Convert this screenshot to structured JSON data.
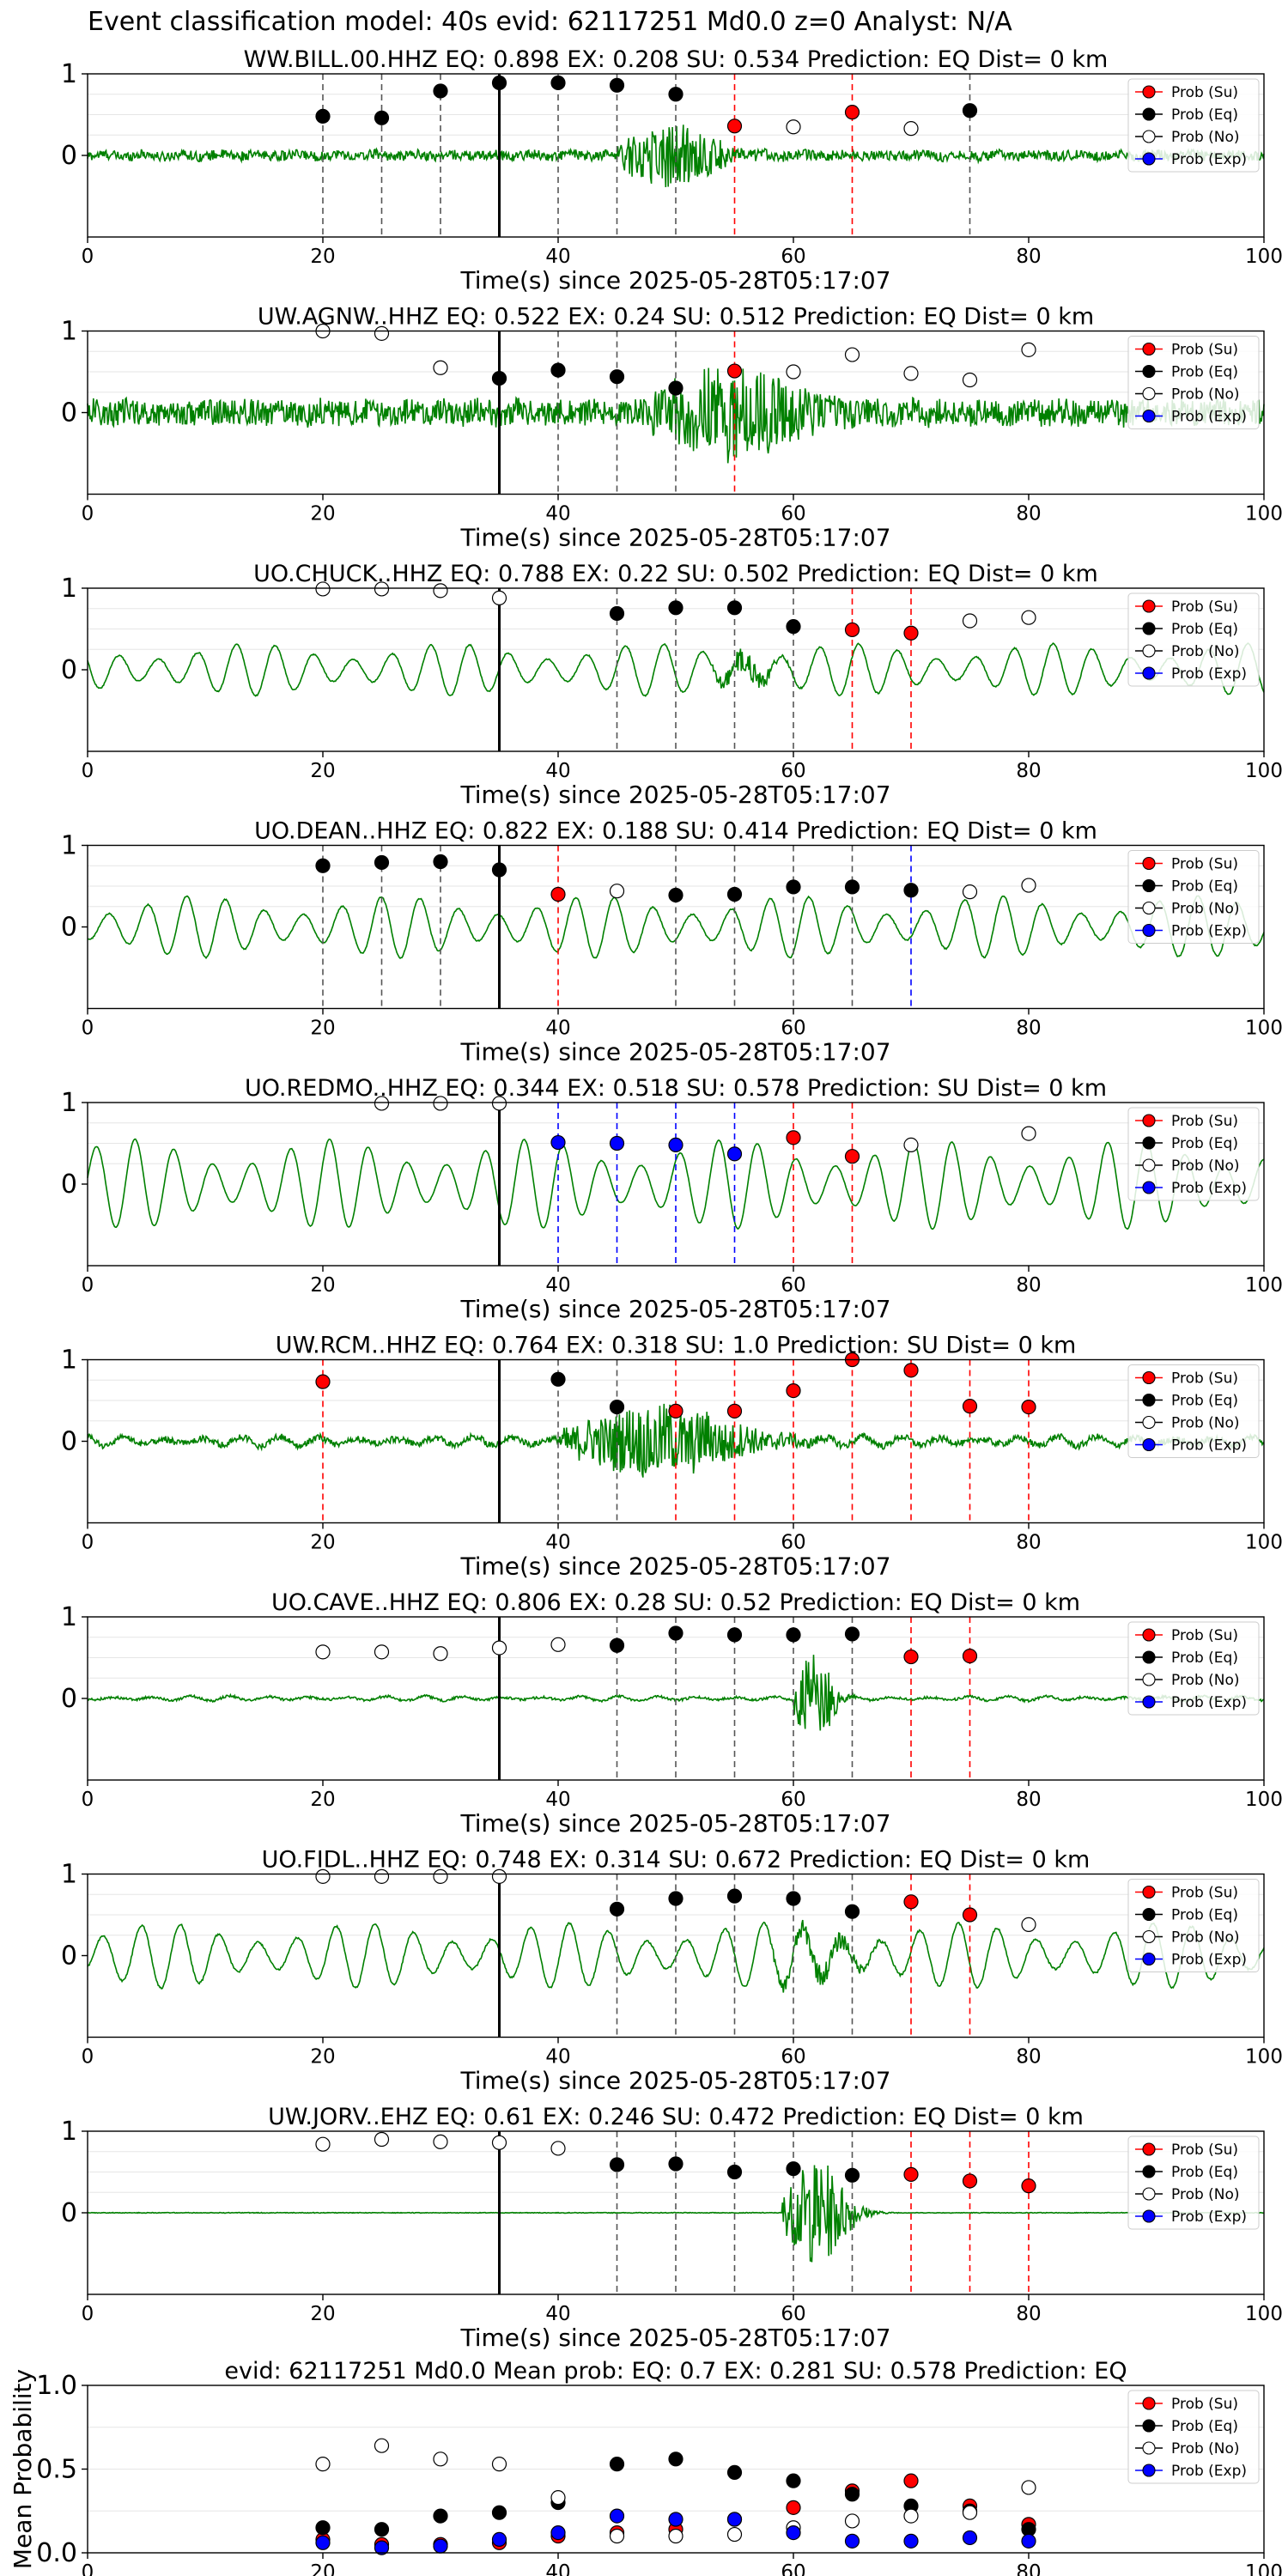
{
  "page_title": "Event classification model: 40s evid: 62117251 Md0.0 z=0 Analyst: N/A",
  "x_axis": {
    "label": "Time(s) since 2025-05-28T05:17:07",
    "range": [
      0,
      100
    ],
    "ticks": [
      "0",
      "20",
      "40",
      "60",
      "80",
      "100"
    ]
  },
  "legend_labels": [
    "Prob (Su)",
    "Prob (Eq)",
    "Prob (No)",
    "Prob (Exp)"
  ],
  "colors": {
    "su": "#ff0000",
    "eq": "#000000",
    "no": "#ffffff",
    "exp": "#0000ff",
    "trace": "#008000"
  },
  "chart_data": [
    {
      "type": "line",
      "title": "WW.BILL.00.HHZ   EQ: 0.898  EX: 0.208  SU: 0.534   Prediction: EQ    Dist= 0 km",
      "y_ticks": [
        "1",
        "0"
      ],
      "ylim": [
        -1,
        1
      ],
      "xlim": [
        0,
        100
      ],
      "pick_time": 35,
      "vlines": [
        {
          "x": 20,
          "c": "eq"
        },
        {
          "x": 25,
          "c": "eq"
        },
        {
          "x": 30,
          "c": "eq"
        },
        {
          "x": 40,
          "c": "eq"
        },
        {
          "x": 45,
          "c": "eq"
        },
        {
          "x": 50,
          "c": "eq"
        },
        {
          "x": 55,
          "c": "su"
        },
        {
          "x": 65,
          "c": "su"
        },
        {
          "x": 75,
          "c": "eq"
        }
      ],
      "points": [
        {
          "x": 20,
          "y": 0.48,
          "c": "eq"
        },
        {
          "x": 25,
          "y": 0.46,
          "c": "eq"
        },
        {
          "x": 30,
          "y": 0.79,
          "c": "eq"
        },
        {
          "x": 35,
          "y": 0.89,
          "c": "eq"
        },
        {
          "x": 40,
          "y": 0.89,
          "c": "eq"
        },
        {
          "x": 45,
          "y": 0.86,
          "c": "eq"
        },
        {
          "x": 50,
          "y": 0.75,
          "c": "eq"
        },
        {
          "x": 55,
          "y": 0.36,
          "c": "su"
        },
        {
          "x": 60,
          "y": 0.35,
          "c": "no"
        },
        {
          "x": 65,
          "y": 0.53,
          "c": "su"
        },
        {
          "x": 70,
          "y": 0.33,
          "c": "no"
        },
        {
          "x": 75,
          "y": 0.55,
          "c": "eq"
        }
      ]
    },
    {
      "type": "line",
      "title": "UW.AGNW..HHZ   EQ: 0.522  EX: 0.24  SU: 0.512   Prediction: EQ    Dist= 0 km",
      "y_ticks": [
        "1",
        "0"
      ],
      "ylim": [
        -1,
        1
      ],
      "xlim": [
        0,
        100
      ],
      "pick_time": 35,
      "vlines": [
        {
          "x": 40,
          "c": "eq"
        },
        {
          "x": 45,
          "c": "eq"
        },
        {
          "x": 50,
          "c": "eq"
        },
        {
          "x": 55,
          "c": "su"
        }
      ],
      "points": [
        {
          "x": 20,
          "y": 1.0,
          "c": "no"
        },
        {
          "x": 25,
          "y": 0.97,
          "c": "no"
        },
        {
          "x": 30,
          "y": 0.55,
          "c": "no"
        },
        {
          "x": 35,
          "y": 0.42,
          "c": "eq"
        },
        {
          "x": 40,
          "y": 0.52,
          "c": "eq"
        },
        {
          "x": 45,
          "y": 0.44,
          "c": "eq"
        },
        {
          "x": 50,
          "y": 0.3,
          "c": "eq"
        },
        {
          "x": 55,
          "y": 0.51,
          "c": "su"
        },
        {
          "x": 60,
          "y": 0.5,
          "c": "no"
        },
        {
          "x": 65,
          "y": 0.71,
          "c": "no"
        },
        {
          "x": 70,
          "y": 0.48,
          "c": "no"
        },
        {
          "x": 75,
          "y": 0.4,
          "c": "no"
        },
        {
          "x": 80,
          "y": 0.77,
          "c": "no"
        }
      ]
    },
    {
      "type": "line",
      "title": "UO.CHUCK..HHZ   EQ: 0.788  EX: 0.22  SU: 0.502   Prediction: EQ    Dist= 0 km",
      "y_ticks": [
        "1",
        "0"
      ],
      "ylim": [
        -1,
        1
      ],
      "xlim": [
        0,
        100
      ],
      "pick_time": 35,
      "vlines": [
        {
          "x": 45,
          "c": "eq"
        },
        {
          "x": 50,
          "c": "eq"
        },
        {
          "x": 55,
          "c": "eq"
        },
        {
          "x": 60,
          "c": "eq"
        },
        {
          "x": 65,
          "c": "su"
        },
        {
          "x": 70,
          "c": "su"
        }
      ],
      "points": [
        {
          "x": 20,
          "y": 0.99,
          "c": "no"
        },
        {
          "x": 25,
          "y": 0.99,
          "c": "no"
        },
        {
          "x": 30,
          "y": 0.97,
          "c": "no"
        },
        {
          "x": 35,
          "y": 0.88,
          "c": "no"
        },
        {
          "x": 45,
          "y": 0.69,
          "c": "eq"
        },
        {
          "x": 50,
          "y": 0.76,
          "c": "eq"
        },
        {
          "x": 55,
          "y": 0.76,
          "c": "eq"
        },
        {
          "x": 60,
          "y": 0.53,
          "c": "eq"
        },
        {
          "x": 65,
          "y": 0.49,
          "c": "su"
        },
        {
          "x": 70,
          "y": 0.45,
          "c": "su"
        },
        {
          "x": 75,
          "y": 0.6,
          "c": "no"
        },
        {
          "x": 80,
          "y": 0.64,
          "c": "no"
        }
      ]
    },
    {
      "type": "line",
      "title": "UO.DEAN..HHZ   EQ: 0.822  EX: 0.188  SU: 0.414   Prediction: EQ    Dist= 0 km",
      "y_ticks": [
        "1",
        "0"
      ],
      "ylim": [
        -1,
        1
      ],
      "xlim": [
        0,
        100
      ],
      "pick_time": 35,
      "vlines": [
        {
          "x": 20,
          "c": "eq"
        },
        {
          "x": 25,
          "c": "eq"
        },
        {
          "x": 30,
          "c": "eq"
        },
        {
          "x": 40,
          "c": "su"
        },
        {
          "x": 50,
          "c": "eq"
        },
        {
          "x": 55,
          "c": "eq"
        },
        {
          "x": 60,
          "c": "eq"
        },
        {
          "x": 65,
          "c": "eq"
        },
        {
          "x": 70,
          "c": "exp"
        }
      ],
      "points": [
        {
          "x": 20,
          "y": 0.75,
          "c": "eq"
        },
        {
          "x": 25,
          "y": 0.79,
          "c": "eq"
        },
        {
          "x": 30,
          "y": 0.8,
          "c": "eq"
        },
        {
          "x": 35,
          "y": 0.7,
          "c": "eq"
        },
        {
          "x": 40,
          "y": 0.4,
          "c": "su"
        },
        {
          "x": 45,
          "y": 0.44,
          "c": "no"
        },
        {
          "x": 50,
          "y": 0.39,
          "c": "eq"
        },
        {
          "x": 55,
          "y": 0.4,
          "c": "eq"
        },
        {
          "x": 60,
          "y": 0.49,
          "c": "eq"
        },
        {
          "x": 65,
          "y": 0.49,
          "c": "eq"
        },
        {
          "x": 70,
          "y": 0.45,
          "c": "eq"
        },
        {
          "x": 75,
          "y": 0.43,
          "c": "no"
        },
        {
          "x": 80,
          "y": 0.51,
          "c": "no"
        }
      ]
    },
    {
      "type": "line",
      "title": "UO.REDMO..HHZ   EQ: 0.344  EX: 0.518  SU: 0.578   Prediction: SU    Dist= 0 km",
      "y_ticks": [
        "1",
        "0"
      ],
      "ylim": [
        -1,
        1
      ],
      "xlim": [
        0,
        100
      ],
      "pick_time": 35,
      "vlines": [
        {
          "x": 40,
          "c": "exp"
        },
        {
          "x": 45,
          "c": "exp"
        },
        {
          "x": 50,
          "c": "exp"
        },
        {
          "x": 55,
          "c": "exp"
        },
        {
          "x": 60,
          "c": "su"
        },
        {
          "x": 65,
          "c": "su"
        }
      ],
      "points": [
        {
          "x": 25,
          "y": 0.99,
          "c": "no"
        },
        {
          "x": 30,
          "y": 0.99,
          "c": "no"
        },
        {
          "x": 35,
          "y": 0.99,
          "c": "no"
        },
        {
          "x": 40,
          "y": 0.51,
          "c": "exp"
        },
        {
          "x": 45,
          "y": 0.5,
          "c": "exp"
        },
        {
          "x": 50,
          "y": 0.48,
          "c": "exp"
        },
        {
          "x": 55,
          "y": 0.37,
          "c": "exp"
        },
        {
          "x": 60,
          "y": 0.57,
          "c": "su"
        },
        {
          "x": 65,
          "y": 0.34,
          "c": "su"
        },
        {
          "x": 70,
          "y": 0.48,
          "c": "no"
        },
        {
          "x": 80,
          "y": 0.62,
          "c": "no"
        }
      ]
    },
    {
      "type": "line",
      "title": "UW.RCM..HHZ   EQ: 0.764  EX: 0.318  SU: 1.0   Prediction: SU    Dist= 0 km",
      "y_ticks": [
        "1",
        "0"
      ],
      "ylim": [
        -1,
        1
      ],
      "xlim": [
        0,
        100
      ],
      "pick_time": 35,
      "vlines": [
        {
          "x": 20,
          "c": "su"
        },
        {
          "x": 40,
          "c": "eq"
        },
        {
          "x": 45,
          "c": "eq"
        },
        {
          "x": 50,
          "c": "su"
        },
        {
          "x": 55,
          "c": "su"
        },
        {
          "x": 60,
          "c": "su"
        },
        {
          "x": 65,
          "c": "su"
        },
        {
          "x": 70,
          "c": "su"
        },
        {
          "x": 75,
          "c": "su"
        },
        {
          "x": 80,
          "c": "su"
        }
      ],
      "points": [
        {
          "x": 20,
          "y": 0.73,
          "c": "su"
        },
        {
          "x": 40,
          "y": 0.76,
          "c": "eq"
        },
        {
          "x": 45,
          "y": 0.42,
          "c": "eq"
        },
        {
          "x": 50,
          "y": 0.37,
          "c": "su"
        },
        {
          "x": 55,
          "y": 0.37,
          "c": "su"
        },
        {
          "x": 60,
          "y": 0.62,
          "c": "su"
        },
        {
          "x": 65,
          "y": 1.0,
          "c": "su"
        },
        {
          "x": 70,
          "y": 0.87,
          "c": "su"
        },
        {
          "x": 75,
          "y": 0.43,
          "c": "su"
        },
        {
          "x": 80,
          "y": 0.42,
          "c": "su"
        }
      ]
    },
    {
      "type": "line",
      "title": "UO.CAVE..HHZ   EQ: 0.806  EX: 0.28  SU: 0.52   Prediction: EQ    Dist= 0 km",
      "y_ticks": [
        "1",
        "0"
      ],
      "ylim": [
        -1,
        1
      ],
      "xlim": [
        0,
        100
      ],
      "pick_time": 35,
      "vlines": [
        {
          "x": 45,
          "c": "eq"
        },
        {
          "x": 50,
          "c": "eq"
        },
        {
          "x": 55,
          "c": "eq"
        },
        {
          "x": 60,
          "c": "eq"
        },
        {
          "x": 65,
          "c": "eq"
        },
        {
          "x": 70,
          "c": "su"
        },
        {
          "x": 75,
          "c": "su"
        }
      ],
      "points": [
        {
          "x": 20,
          "y": 0.57,
          "c": "no"
        },
        {
          "x": 25,
          "y": 0.57,
          "c": "no"
        },
        {
          "x": 30,
          "y": 0.55,
          "c": "no"
        },
        {
          "x": 35,
          "y": 0.62,
          "c": "no"
        },
        {
          "x": 40,
          "y": 0.66,
          "c": "no"
        },
        {
          "x": 45,
          "y": 0.65,
          "c": "eq"
        },
        {
          "x": 50,
          "y": 0.8,
          "c": "eq"
        },
        {
          "x": 55,
          "y": 0.78,
          "c": "eq"
        },
        {
          "x": 60,
          "y": 0.78,
          "c": "eq"
        },
        {
          "x": 65,
          "y": 0.79,
          "c": "eq"
        },
        {
          "x": 70,
          "y": 0.51,
          "c": "su"
        },
        {
          "x": 75,
          "y": 0.52,
          "c": "su"
        }
      ]
    },
    {
      "type": "line",
      "title": "UO.FIDL..HHZ   EQ: 0.748  EX: 0.314  SU: 0.672   Prediction: EQ    Dist= 0 km",
      "y_ticks": [
        "1",
        "0"
      ],
      "ylim": [
        -1,
        1
      ],
      "xlim": [
        0,
        100
      ],
      "pick_time": 35,
      "vlines": [
        {
          "x": 45,
          "c": "eq"
        },
        {
          "x": 50,
          "c": "eq"
        },
        {
          "x": 55,
          "c": "eq"
        },
        {
          "x": 60,
          "c": "eq"
        },
        {
          "x": 65,
          "c": "eq"
        },
        {
          "x": 70,
          "c": "su"
        },
        {
          "x": 75,
          "c": "su"
        }
      ],
      "points": [
        {
          "x": 20,
          "y": 0.97,
          "c": "no"
        },
        {
          "x": 25,
          "y": 0.97,
          "c": "no"
        },
        {
          "x": 30,
          "y": 0.97,
          "c": "no"
        },
        {
          "x": 35,
          "y": 0.97,
          "c": "no"
        },
        {
          "x": 45,
          "y": 0.57,
          "c": "eq"
        },
        {
          "x": 50,
          "y": 0.7,
          "c": "eq"
        },
        {
          "x": 55,
          "y": 0.73,
          "c": "eq"
        },
        {
          "x": 60,
          "y": 0.7,
          "c": "eq"
        },
        {
          "x": 65,
          "y": 0.54,
          "c": "eq"
        },
        {
          "x": 70,
          "y": 0.66,
          "c": "su"
        },
        {
          "x": 75,
          "y": 0.5,
          "c": "su"
        },
        {
          "x": 80,
          "y": 0.38,
          "c": "no"
        }
      ]
    },
    {
      "type": "line",
      "title": "UW.JORV..EHZ   EQ: 0.61  EX: 0.246  SU: 0.472   Prediction: EQ    Dist= 0 km",
      "y_ticks": [
        "1",
        "0"
      ],
      "ylim": [
        -1,
        1
      ],
      "xlim": [
        0,
        100
      ],
      "pick_time": 35,
      "vlines": [
        {
          "x": 45,
          "c": "eq"
        },
        {
          "x": 50,
          "c": "eq"
        },
        {
          "x": 55,
          "c": "eq"
        },
        {
          "x": 60,
          "c": "eq"
        },
        {
          "x": 65,
          "c": "eq"
        },
        {
          "x": 70,
          "c": "su"
        },
        {
          "x": 75,
          "c": "su"
        },
        {
          "x": 80,
          "c": "su"
        }
      ],
      "points": [
        {
          "x": 20,
          "y": 0.84,
          "c": "no"
        },
        {
          "x": 25,
          "y": 0.9,
          "c": "no"
        },
        {
          "x": 30,
          "y": 0.87,
          "c": "no"
        },
        {
          "x": 35,
          "y": 0.86,
          "c": "no"
        },
        {
          "x": 40,
          "y": 0.79,
          "c": "no"
        },
        {
          "x": 45,
          "y": 0.59,
          "c": "eq"
        },
        {
          "x": 50,
          "y": 0.6,
          "c": "eq"
        },
        {
          "x": 55,
          "y": 0.5,
          "c": "eq"
        },
        {
          "x": 60,
          "y": 0.54,
          "c": "eq"
        },
        {
          "x": 65,
          "y": 0.46,
          "c": "eq"
        },
        {
          "x": 70,
          "y": 0.47,
          "c": "su"
        },
        {
          "x": 75,
          "y": 0.39,
          "c": "su"
        },
        {
          "x": 80,
          "y": 0.33,
          "c": "su"
        }
      ]
    },
    {
      "type": "scatter",
      "title": "evid: 62117251  Md0.0   Mean prob:   EQ: 0.7  EX: 0.281  SU: 0.578   Prediction: EQ",
      "ylabel": "Mean Probability",
      "y_ticks": [
        "1.0",
        "0.5",
        "0.0"
      ],
      "ylim": [
        0,
        1
      ],
      "xlim": [
        0,
        100
      ],
      "series": [
        {
          "name": "Prob (Su)",
          "c": "su",
          "x": [
            20,
            25,
            30,
            35,
            40,
            45,
            50,
            55,
            60,
            65,
            70,
            75,
            80
          ],
          "y": [
            0.08,
            0.05,
            0.05,
            0.06,
            0.1,
            0.12,
            0.14,
            0.2,
            0.27,
            0.37,
            0.43,
            0.28,
            0.17
          ]
        },
        {
          "name": "Prob (Eq)",
          "c": "eq",
          "x": [
            20,
            25,
            30,
            35,
            40,
            45,
            50,
            55,
            60,
            65,
            70,
            75,
            80
          ],
          "y": [
            0.15,
            0.14,
            0.22,
            0.24,
            0.3,
            0.53,
            0.56,
            0.48,
            0.43,
            0.35,
            0.28,
            0.25,
            0.14
          ]
        },
        {
          "name": "Prob (No)",
          "c": "no",
          "x": [
            20,
            25,
            30,
            35,
            40,
            45,
            50,
            55,
            60,
            65,
            70,
            75,
            80
          ],
          "y": [
            0.53,
            0.64,
            0.56,
            0.53,
            0.33,
            0.1,
            0.1,
            0.11,
            0.15,
            0.19,
            0.22,
            0.24,
            0.39
          ]
        },
        {
          "name": "Prob (Exp)",
          "c": "exp",
          "x": [
            20,
            25,
            30,
            35,
            40,
            45,
            50,
            55,
            60,
            65,
            70,
            75,
            80
          ],
          "y": [
            0.06,
            0.03,
            0.04,
            0.08,
            0.12,
            0.22,
            0.2,
            0.2,
            0.12,
            0.07,
            0.07,
            0.09,
            0.07
          ]
        }
      ]
    }
  ]
}
